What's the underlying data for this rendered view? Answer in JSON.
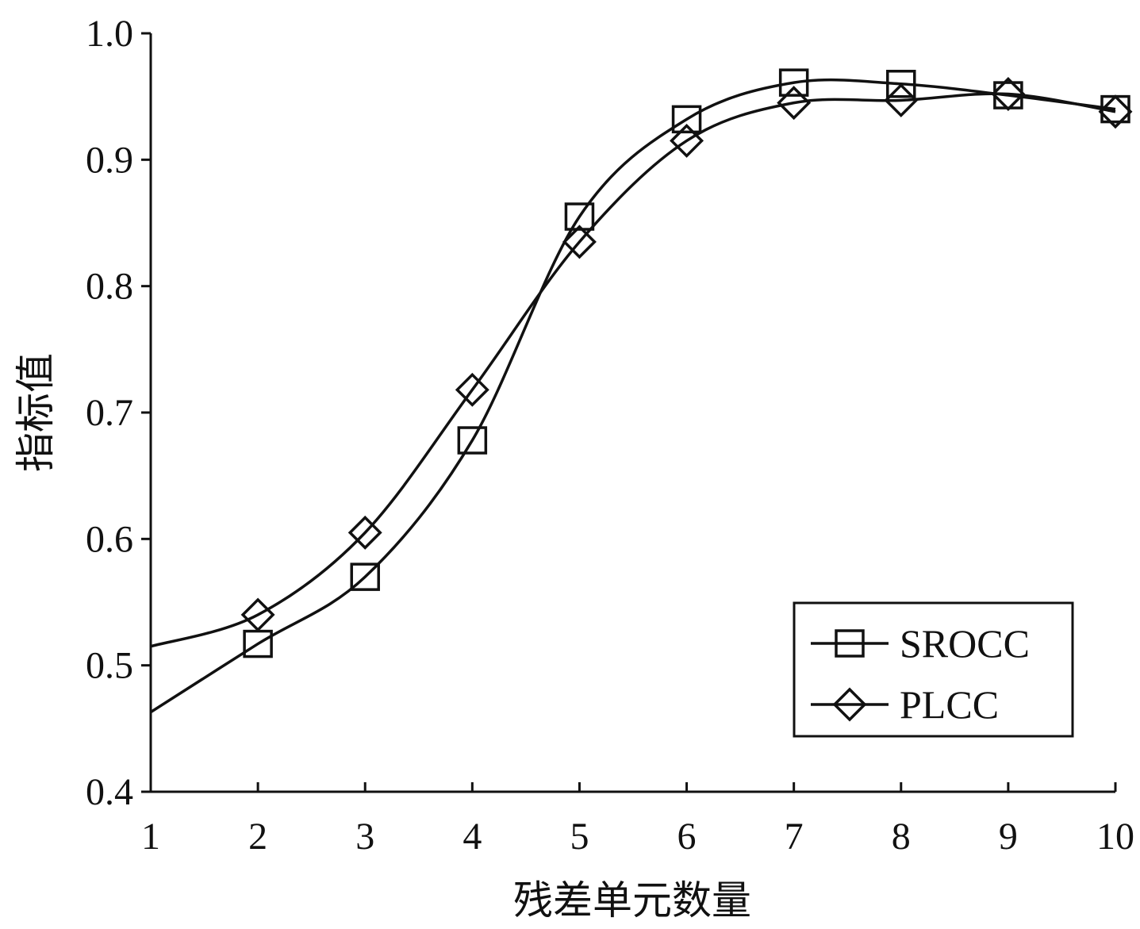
{
  "chart_data": {
    "type": "line",
    "xlabel": "残差单元数量",
    "ylabel": "指标值",
    "xlim": [
      1,
      10
    ],
    "ylim": [
      0.4,
      1.0
    ],
    "x_ticks": [
      "1",
      "2",
      "3",
      "4",
      "5",
      "6",
      "7",
      "8",
      "9",
      "10"
    ],
    "y_ticks": [
      "0.4",
      "0.5",
      "0.6",
      "0.7",
      "0.8",
      "0.9",
      "1.0"
    ],
    "grid": false,
    "legend_position": "bottom-right",
    "series": [
      {
        "name": "SROCC",
        "marker": "square",
        "x": [
          2,
          3,
          4,
          5,
          6,
          7,
          8,
          9,
          10
        ],
        "values": [
          0.517,
          0.57,
          0.678,
          0.855,
          0.932,
          0.961,
          0.96,
          0.951,
          0.94
        ],
        "curve_start": 0.463
      },
      {
        "name": "PLCC",
        "marker": "diamond",
        "x": [
          2,
          3,
          4,
          5,
          6,
          7,
          8,
          9,
          10
        ],
        "values": [
          0.54,
          0.605,
          0.718,
          0.835,
          0.915,
          0.945,
          0.947,
          0.952,
          0.938
        ],
        "curve_start": 0.515
      }
    ]
  }
}
